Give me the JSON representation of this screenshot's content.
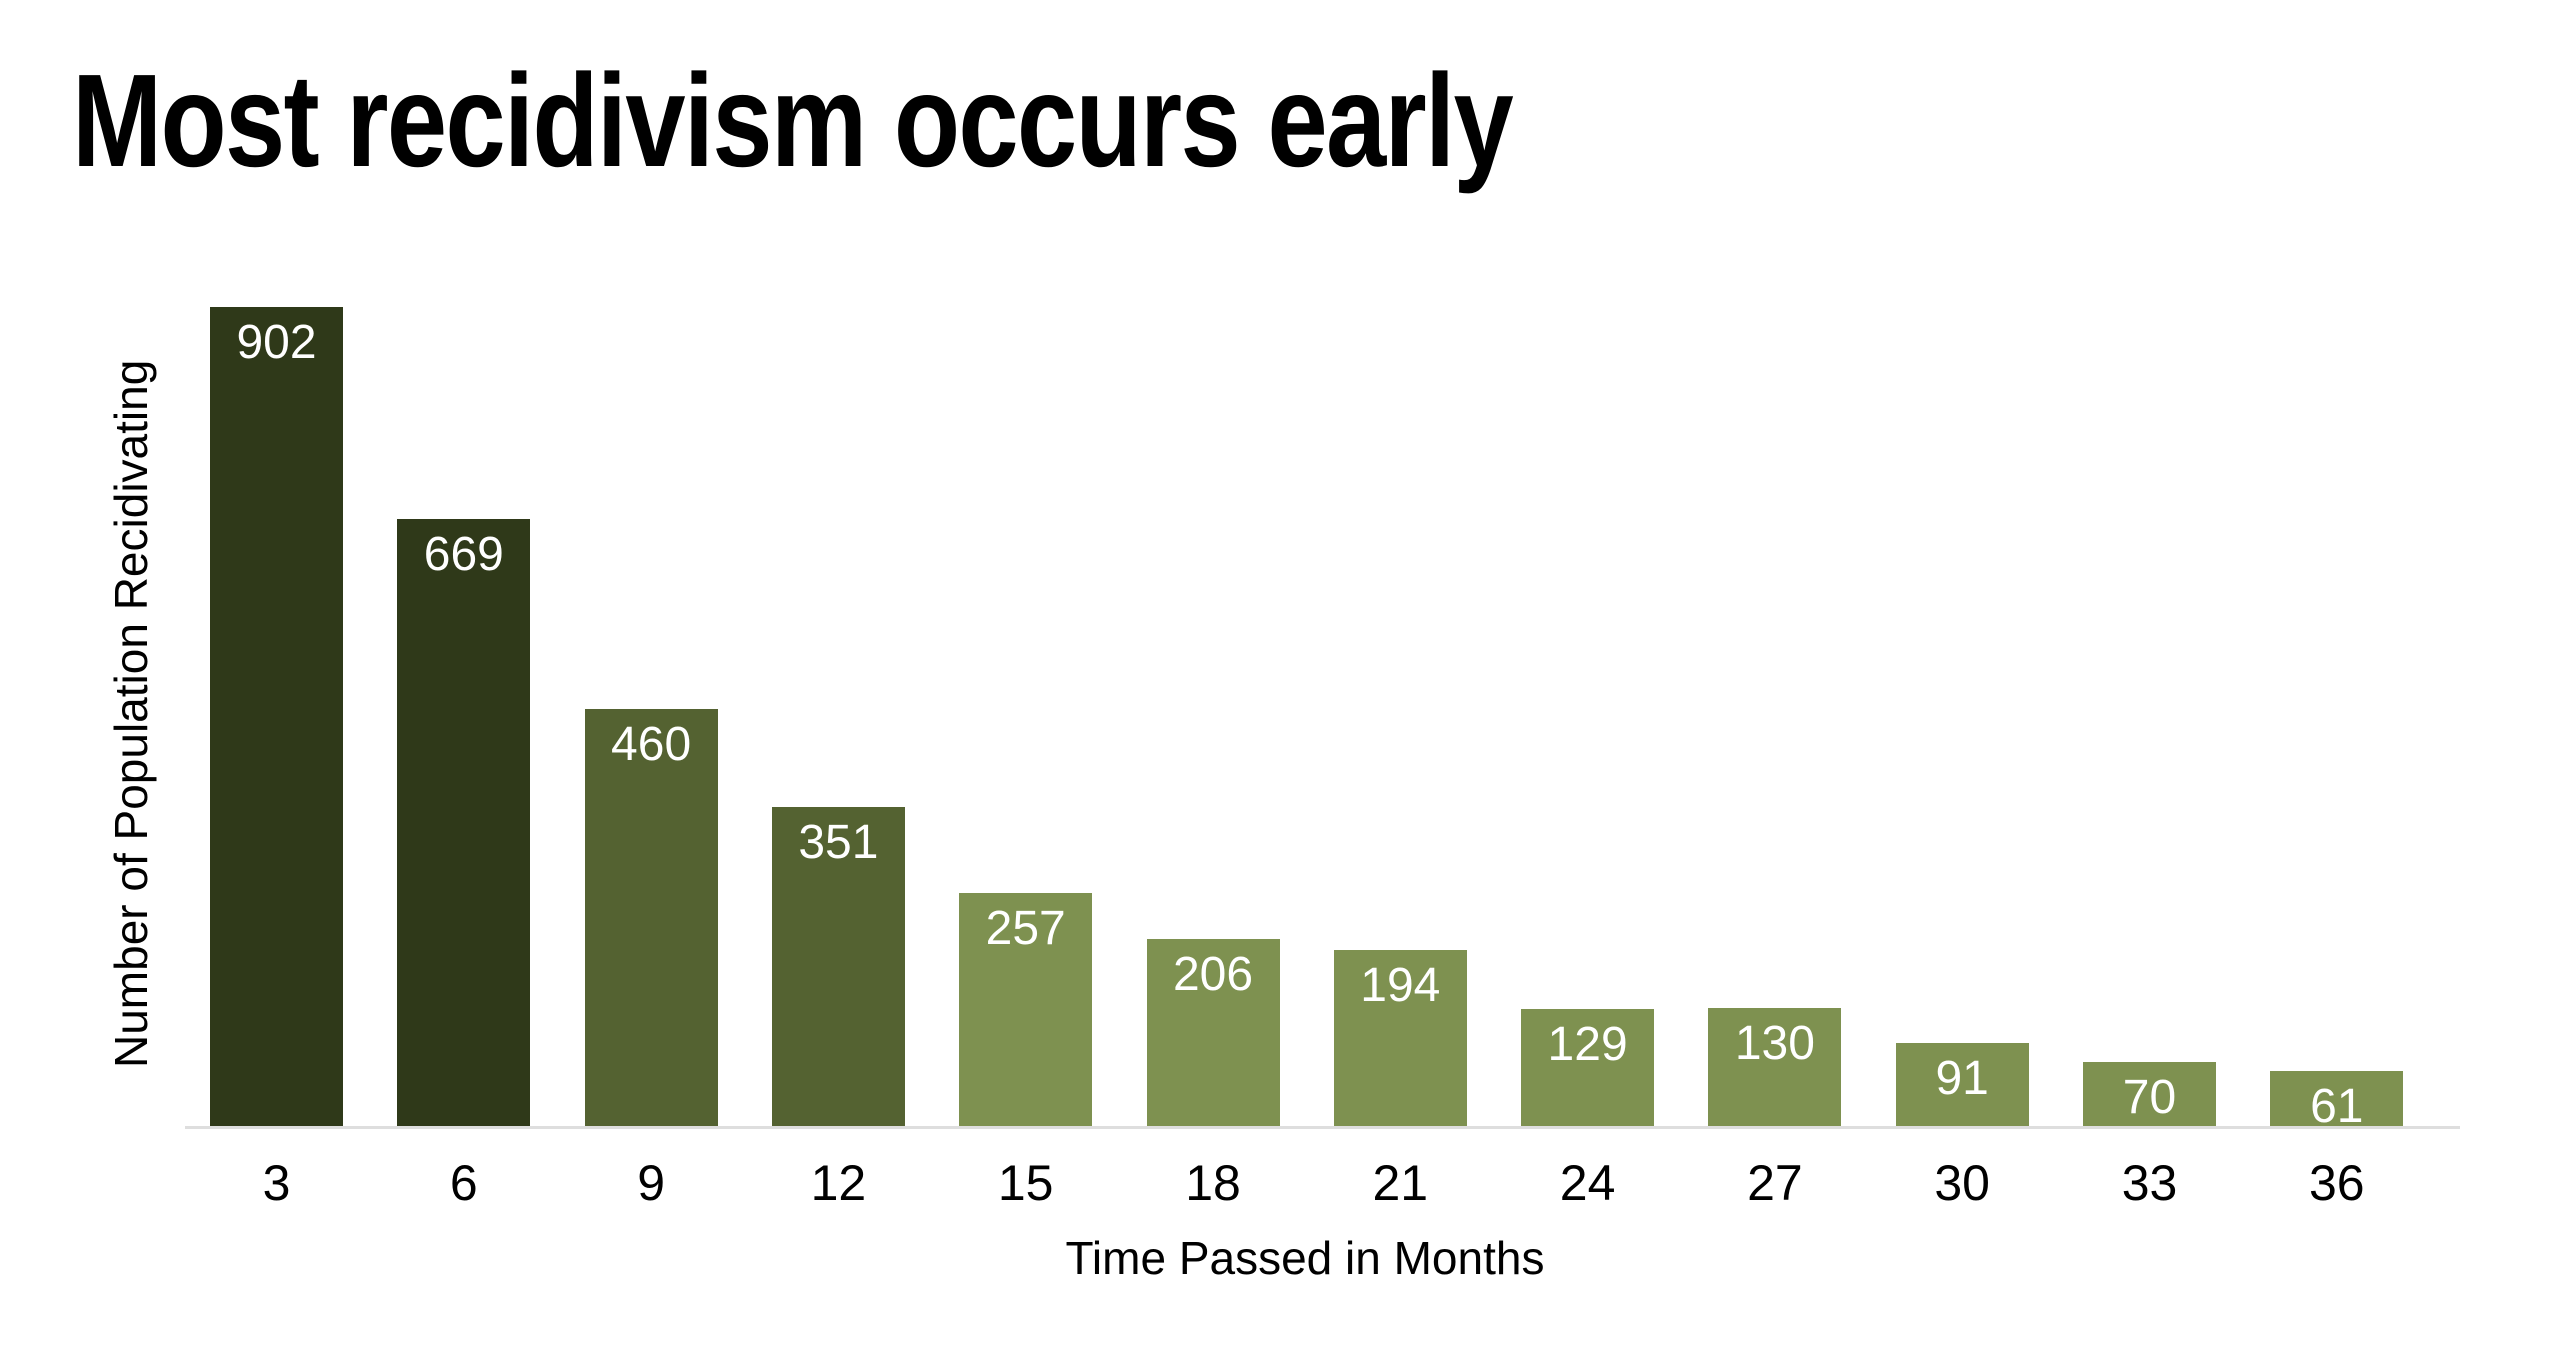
{
  "title": "Most recidivism occurs early",
  "chart_data": {
    "type": "bar",
    "title": "Most recidivism occurs early",
    "categories": [
      "3",
      "6",
      "9",
      "12",
      "15",
      "18",
      "21",
      "24",
      "27",
      "30",
      "33",
      "36"
    ],
    "values": [
      902,
      669,
      460,
      351,
      257,
      206,
      194,
      129,
      130,
      91,
      70,
      61
    ],
    "bar_colors": [
      "#2f3919",
      "#2f3919",
      "#546231",
      "#546231",
      "#7e9150",
      "#7e9150",
      "#7e9150",
      "#7e9150",
      "#7e9150",
      "#7e9150",
      "#7e9150",
      "#7e9150"
    ],
    "xlabel": "Time Passed in Months",
    "ylabel": "Number of Population Recidivating",
    "ylim": [
      0,
      920
    ],
    "grid": false,
    "legend": "none",
    "value_label_position": "inside-top",
    "value_label_color": "#ffffff"
  },
  "colors": {
    "background": "#ffffff",
    "text": "#000000",
    "bar_dark": "#2f3919",
    "bar_medium": "#546231",
    "bar_light": "#7e9150",
    "axis_line": "#dedede"
  }
}
